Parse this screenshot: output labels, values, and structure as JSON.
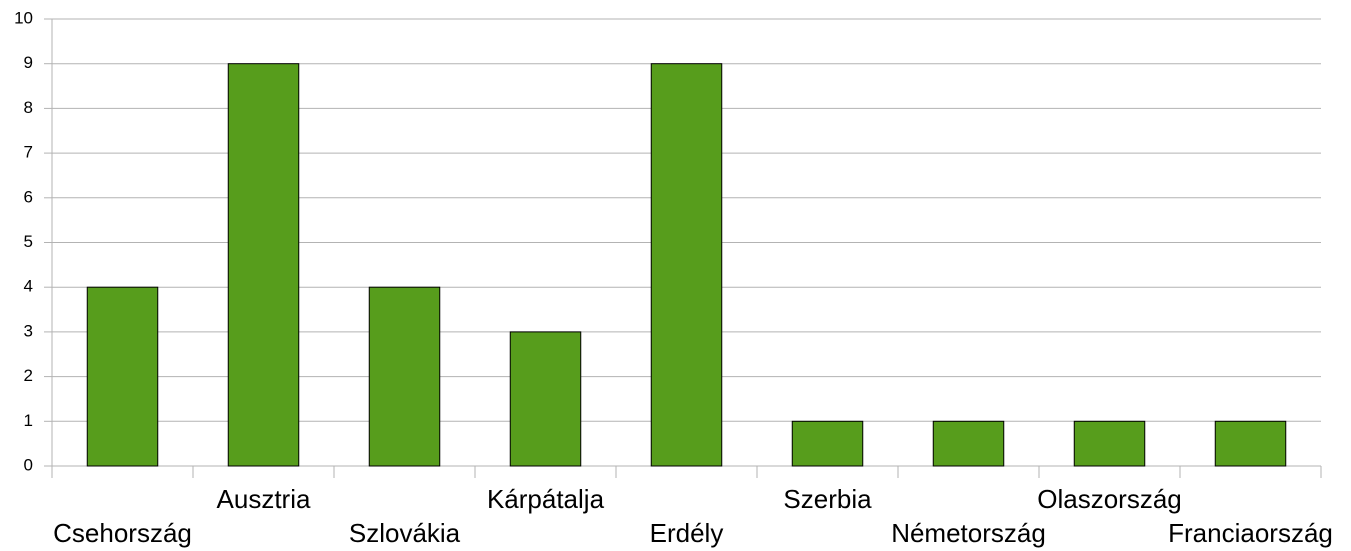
{
  "chart_data": {
    "type": "bar",
    "categories": [
      "Csehország",
      "Ausztria",
      "Szlovákia",
      "Kárpátalja",
      "Erdély",
      "Szerbia",
      "Németország",
      "Olaszország",
      "Franciaország"
    ],
    "values": [
      4,
      9,
      4,
      3,
      9,
      1,
      1,
      1,
      1
    ],
    "color": "#579d1c",
    "ylim": [
      0,
      10
    ],
    "yticks": [
      0,
      1,
      2,
      3,
      4,
      5,
      6,
      7,
      8,
      9,
      10
    ],
    "grid": true
  }
}
